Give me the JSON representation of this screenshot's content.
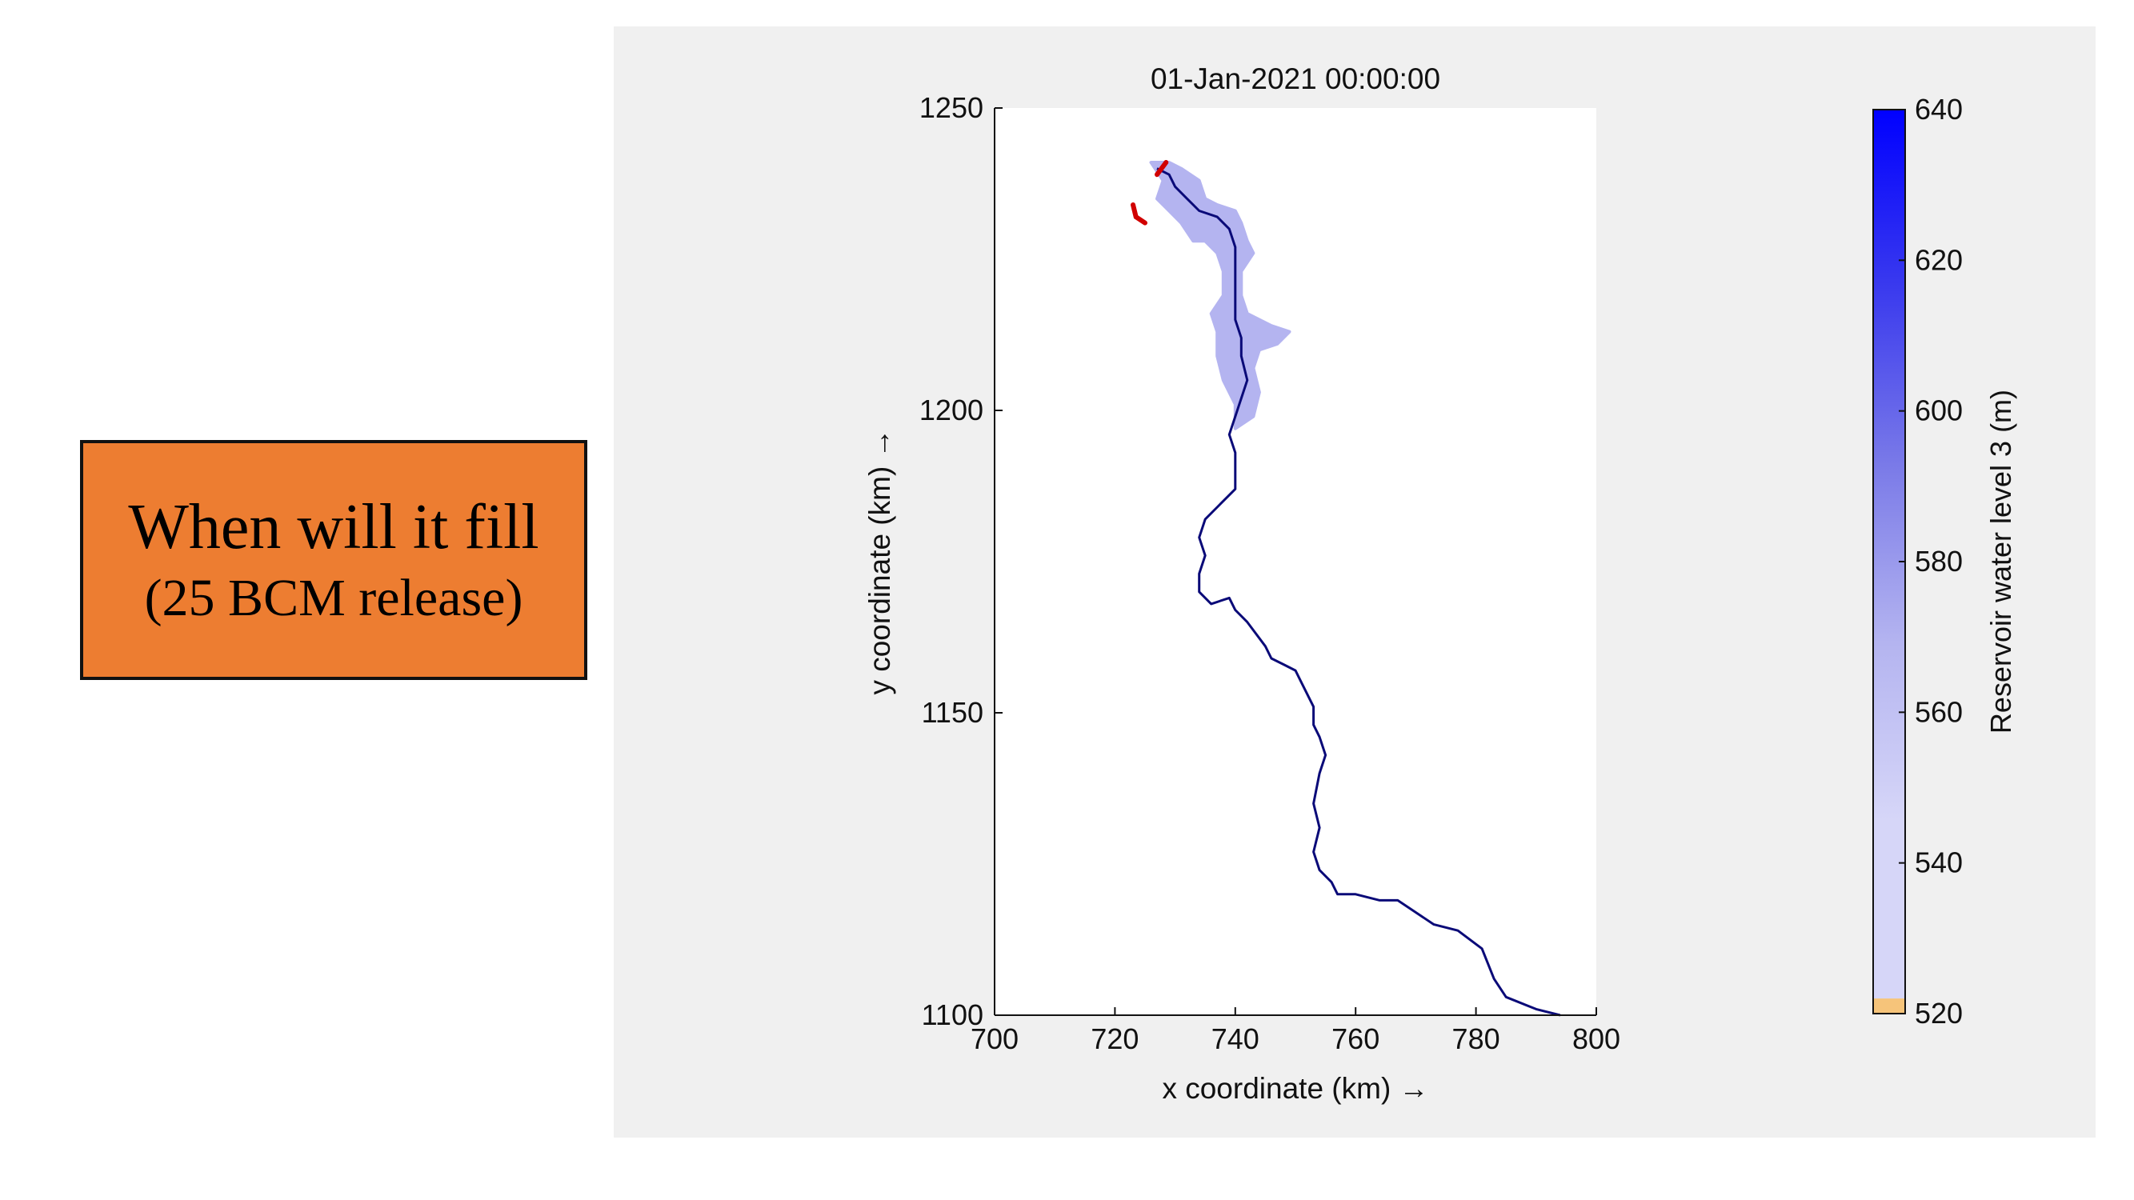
{
  "callout": {
    "line1": "When will it fill",
    "line2": "(25 BCM release)",
    "background": "#ed7d31"
  },
  "chart_data": {
    "type": "map",
    "title": "01-Jan-2021 00:00:00",
    "xlabel": "x coordinate (km) →",
    "ylabel": "y coordinate (km) →",
    "xlim": [
      700,
      800
    ],
    "ylim": [
      1100,
      1250
    ],
    "xticks": [
      "700",
      "720",
      "740",
      "760",
      "780",
      "800"
    ],
    "yticks": [
      "1100",
      "1150",
      "1200",
      "1250"
    ],
    "grid": false,
    "river_color": "#0a0a78",
    "river": [
      [
        794,
        1100
      ],
      [
        790,
        1101
      ],
      [
        785,
        1103
      ],
      [
        783,
        1106
      ],
      [
        781,
        1111
      ],
      [
        777,
        1114
      ],
      [
        773,
        1115
      ],
      [
        770,
        1117
      ],
      [
        767,
        1119
      ],
      [
        764,
        1119
      ],
      [
        760,
        1120
      ],
      [
        757,
        1120
      ],
      [
        756,
        1122
      ],
      [
        754,
        1124
      ],
      [
        753,
        1127
      ],
      [
        754,
        1131
      ],
      [
        753,
        1135
      ],
      [
        754,
        1140
      ],
      [
        755,
        1143
      ],
      [
        754,
        1146
      ],
      [
        753,
        1148
      ],
      [
        753,
        1151
      ],
      [
        751,
        1155
      ],
      [
        750,
        1157
      ],
      [
        748,
        1158
      ],
      [
        746,
        1159
      ],
      [
        745,
        1161
      ],
      [
        742,
        1165
      ],
      [
        740,
        1167
      ],
      [
        739,
        1169
      ],
      [
        736,
        1168
      ],
      [
        734,
        1170
      ],
      [
        734,
        1173
      ],
      [
        735,
        1176
      ],
      [
        734,
        1179
      ],
      [
        735,
        1182
      ],
      [
        737,
        1184
      ],
      [
        739,
        1186
      ],
      [
        740,
        1187
      ],
      [
        740,
        1190
      ],
      [
        740,
        1193
      ],
      [
        739,
        1196
      ],
      [
        740,
        1199
      ],
      [
        741,
        1202
      ],
      [
        742,
        1205
      ],
      [
        741,
        1209
      ],
      [
        741,
        1212
      ],
      [
        740,
        1215
      ],
      [
        740,
        1219
      ],
      [
        740,
        1223
      ],
      [
        740,
        1227
      ],
      [
        739,
        1230
      ],
      [
        737,
        1232
      ],
      [
        734,
        1233
      ],
      [
        732,
        1235
      ],
      [
        730,
        1237
      ],
      [
        729,
        1239
      ],
      [
        727,
        1240
      ]
    ],
    "reservoir_level_m": 560,
    "reservoir": [
      [
        726,
        1241
      ],
      [
        729,
        1241
      ],
      [
        731,
        1240
      ],
      [
        734,
        1238
      ],
      [
        735,
        1235
      ],
      [
        737,
        1234
      ],
      [
        740,
        1233
      ],
      [
        741,
        1231
      ],
      [
        742,
        1228
      ],
      [
        743,
        1226
      ],
      [
        741,
        1223
      ],
      [
        741,
        1219
      ],
      [
        742,
        1216
      ],
      [
        746,
        1214
      ],
      [
        749,
        1213
      ],
      [
        747,
        1211
      ],
      [
        744,
        1210
      ],
      [
        743,
        1207
      ],
      [
        744,
        1203
      ],
      [
        743,
        1199
      ],
      [
        740,
        1197
      ],
      [
        740,
        1201
      ],
      [
        738,
        1205
      ],
      [
        737,
        1209
      ],
      [
        737,
        1213
      ],
      [
        736,
        1216
      ],
      [
        738,
        1219
      ],
      [
        738,
        1223
      ],
      [
        737,
        1226
      ],
      [
        735,
        1228
      ],
      [
        733,
        1228
      ],
      [
        731,
        1231
      ],
      [
        729,
        1233
      ],
      [
        727,
        1235
      ],
      [
        728,
        1238
      ]
    ],
    "red_features": [
      [
        [
          723,
          1234
        ],
        [
          723.5,
          1232
        ],
        [
          725,
          1231
        ]
      ],
      [
        [
          727,
          1239
        ],
        [
          728.5,
          1241
        ]
      ]
    ],
    "colorbar": {
      "label": "Reservoir water level 3 (m)",
      "range": [
        520,
        640
      ],
      "ticks": [
        "640",
        "620",
        "600",
        "580",
        "560",
        "540",
        "520"
      ],
      "low_color": "#f6c47a",
      "low_fraction": 0.0167,
      "stops": [
        "#d6d6f8",
        "#d6d6f8",
        "#b4b4f0",
        "#7a7ae8",
        "#3a3aee",
        "#0000ff"
      ]
    }
  }
}
